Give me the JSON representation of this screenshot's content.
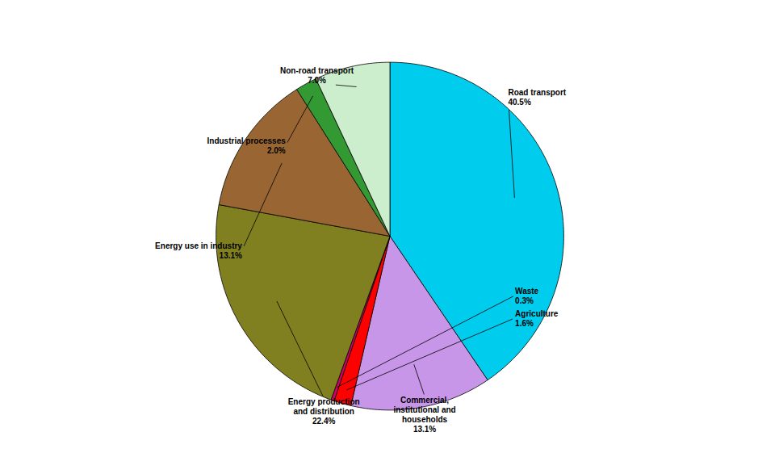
{
  "chart_data": {
    "type": "pie",
    "categories": [
      "Road transport",
      "Commercial,\ninstitutional and\nhouseholds",
      "Agriculture",
      "Waste",
      "Energy production\nand distribution",
      "Energy use in industry",
      "Industrial processes",
      "Non-road transport"
    ],
    "values": [
      40.5,
      13.1,
      1.6,
      0.3,
      22.4,
      13.1,
      2.0,
      7.0
    ],
    "value_labels": [
      "40.5%",
      "13.1%",
      "1.6%",
      "0.3%",
      "22.4%",
      "13.1%",
      "2.0%",
      "7.0%"
    ],
    "colors": [
      "#00ccee",
      "#c896e8",
      "#ff0000",
      "#cc0066",
      "#808020",
      "#996633",
      "#339933",
      "#cceecc"
    ],
    "tick_labels": false
  }
}
